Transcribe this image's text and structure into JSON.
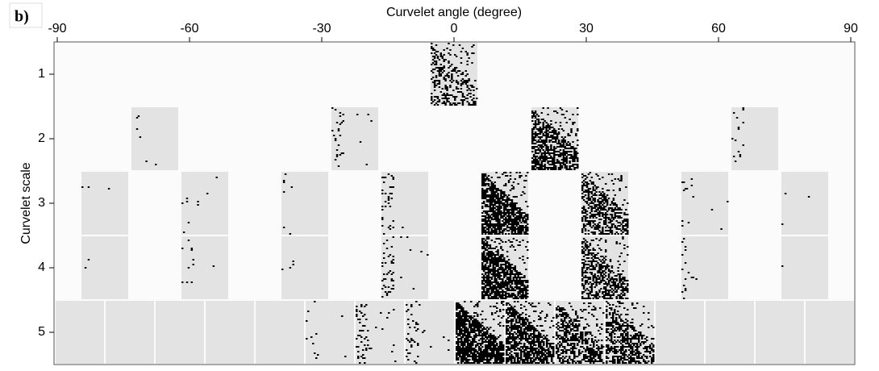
{
  "panel_label": "b)",
  "chart_data": {
    "type": "tiles",
    "xlabel": "Curvelet angle (degree)",
    "ylabel": "Curvelet scale",
    "xlim": [
      -90,
      90
    ],
    "xticks": [
      -90,
      -60,
      -30,
      0,
      30,
      60,
      90
    ],
    "ylim": [
      0.5,
      5.5
    ],
    "yticks": [
      1,
      2,
      3,
      4,
      5
    ]
  }
}
